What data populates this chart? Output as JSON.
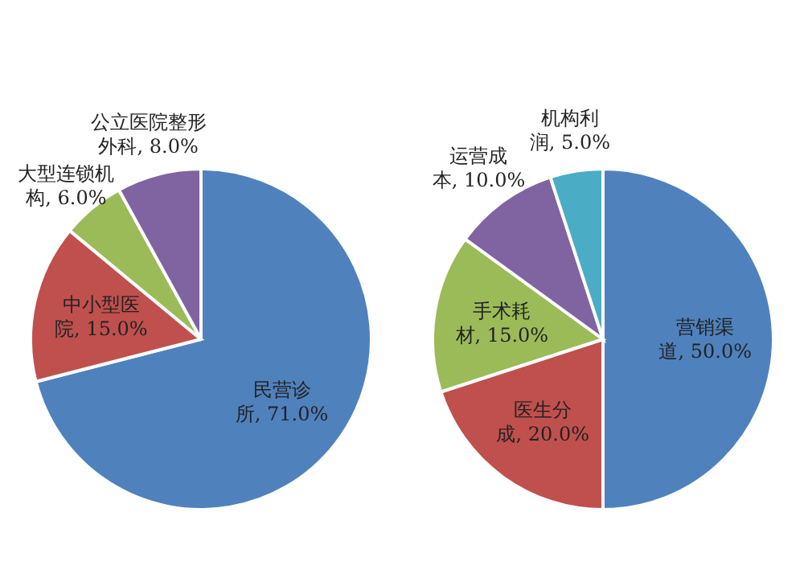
{
  "chart_data": [
    {
      "type": "pie",
      "categories": [
        "民营诊所",
        "中小型医院",
        "大型连锁机构",
        "公立医院整形外科"
      ],
      "values": [
        71,
        15,
        6,
        8
      ],
      "value_labels": [
        "71.0%",
        "15.0%",
        "6.0%",
        "8.0%"
      ],
      "colors": [
        "#4f81bd",
        "#c0504d",
        "#9bbb59",
        "#8064a2"
      ]
    },
    {
      "type": "pie",
      "categories": [
        "营销渠道",
        "医生分成",
        "手术耗材",
        "运营成本",
        "机构利润"
      ],
      "values": [
        50,
        20,
        15,
        10,
        5
      ],
      "value_labels": [
        "50.0%",
        "20.0%",
        "15.0%",
        "10.0%",
        "5.0%"
      ],
      "colors": [
        "#4f81bd",
        "#c0504d",
        "#9bbb59",
        "#8064a2",
        "#4bacc6"
      ]
    }
  ]
}
